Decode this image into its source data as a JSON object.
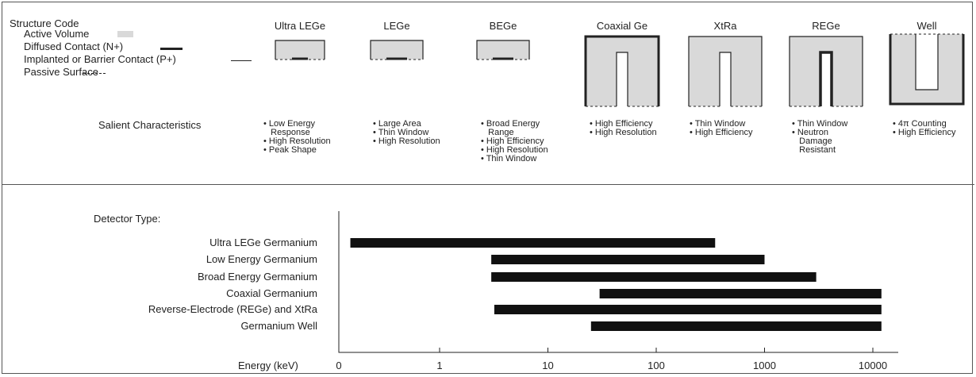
{
  "legend": {
    "title": "Structure Code",
    "items": [
      {
        "label": "Active Volume",
        "style": "fill"
      },
      {
        "label": "Diffused Contact (N+)",
        "style": "thick"
      },
      {
        "label": "Implanted or Barrier Contact (P+)",
        "style": "thin"
      },
      {
        "label": "Passive Surface",
        "style": "dashed"
      }
    ]
  },
  "detectors": [
    {
      "name": "Ultra LEGe",
      "shape": "flat-small",
      "characteristics": [
        "• Low Energy",
        "  Response",
        "• High Resolution",
        "• Peak Shape"
      ]
    },
    {
      "name": "LEGe",
      "shape": "flat",
      "characteristics": [
        "• Large Area",
        "• Thin Window",
        "• High Resolution"
      ]
    },
    {
      "name": "BEGe",
      "shape": "flat",
      "characteristics": [
        "• Broad Energy",
        "  Range",
        "• High Efficiency",
        "• High Resolution",
        "• Thin Window"
      ]
    },
    {
      "name": "Coaxial Ge",
      "shape": "coax",
      "characteristics": [
        "• High Efficiency",
        "• High Resolution"
      ]
    },
    {
      "name": "XtRa",
      "shape": "coax-thin",
      "characteristics": [
        "• Thin Window",
        "• High Efficiency"
      ]
    },
    {
      "name": "REGe",
      "shape": "rege",
      "characteristics": [
        "• Thin Window",
        "• Neutron",
        "  Damage",
        "  Resistant"
      ]
    },
    {
      "name": "Well",
      "shape": "well",
      "characteristics": [
        "• 4π Counting",
        "• High Efficiency"
      ]
    }
  ],
  "salient_title": "Salient Characteristics",
  "detector_type_title": "Detector Type:",
  "colors": {
    "active_volume": "#d9d9d9",
    "bar": "#111111",
    "line": "#222222"
  },
  "chart_data": {
    "type": "bar",
    "orientation": "horizontal-range",
    "xlabel": "Energy (keV)",
    "x_scale": "log",
    "x_ticks": [
      "0",
      "1",
      "10",
      "100",
      "1000",
      "10000"
    ],
    "categories": [
      "Ultra LEGe Germanium",
      "Low Energy Germanium",
      "Broad Energy Germanium",
      "Coaxial Germanium",
      "Reverse-Electrode (REGe) and XtRa",
      "Germanium Well"
    ],
    "ranges_keV": [
      [
        0.15,
        350
      ],
      [
        3,
        1000
      ],
      [
        3,
        3000
      ],
      [
        30,
        12000
      ],
      [
        3.2,
        12000
      ],
      [
        25,
        12000
      ]
    ]
  }
}
